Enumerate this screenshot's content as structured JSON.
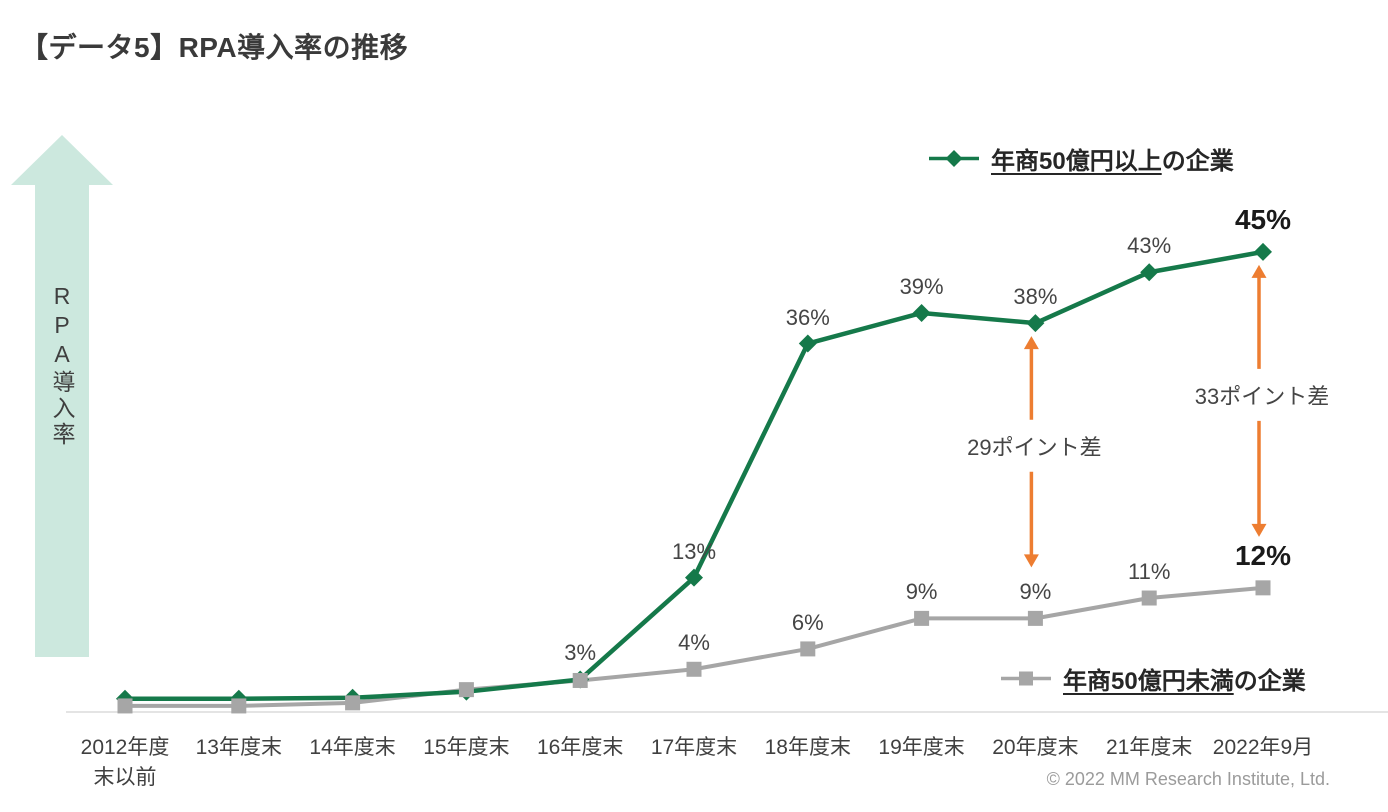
{
  "title": "【データ5】RPA導入率の推移",
  "y_axis": {
    "label": "RPA導入率"
  },
  "copyright": "© 2022 MM Research Institute, Ltd.",
  "colors": {
    "series1": "#15794a",
    "series2": "#a6a6a6",
    "diff_arrow": "#ed7d31",
    "axis_line": "#dcdcdc",
    "y_arrow_fill": "#cce8de",
    "label_text": "#454545"
  },
  "legend": {
    "series1": {
      "underlined": "年商50億円以上",
      "rest": "の企業"
    },
    "series2": {
      "underlined": "年商50億円未満",
      "rest": "の企業"
    }
  },
  "chart_data": {
    "type": "line",
    "title": "RPA導入率の推移",
    "xlabel": "",
    "ylabel": "RPA導入率",
    "ylim": [
      0,
      50
    ],
    "grid": false,
    "categories": [
      "2012年度\n末以前",
      "13年度末",
      "14年度末",
      "15年度末",
      "16年度末",
      "17年度末",
      "18年度末",
      "19年度末",
      "20年度末",
      "21年度末",
      "2022年9月"
    ],
    "series": [
      {
        "name": "年商50億円以上の企業",
        "marker": "diamond",
        "legend_position": "top-right",
        "values": [
          1.1,
          1.1,
          1.2,
          1.8,
          3,
          13,
          36,
          39,
          38,
          43,
          45
        ],
        "labels": [
          "",
          "",
          "",
          "",
          "3%",
          "13%",
          "36%",
          "39%",
          "38%",
          "43%",
          "45%"
        ]
      },
      {
        "name": "年商50億円未満の企業",
        "marker": "square",
        "legend_position": "bottom-right",
        "values": [
          0.4,
          0.4,
          0.7,
          2,
          2.9,
          4,
          6,
          9,
          9,
          11,
          12
        ],
        "labels": [
          "",
          "",
          "",
          "",
          "",
          "4%",
          "6%",
          "9%",
          "9%",
          "11%",
          "12%"
        ]
      }
    ],
    "annotations": [
      {
        "label": "29ポイント差",
        "category_index": 8
      },
      {
        "label": "33ポイント差",
        "category_index": 10
      }
    ]
  }
}
